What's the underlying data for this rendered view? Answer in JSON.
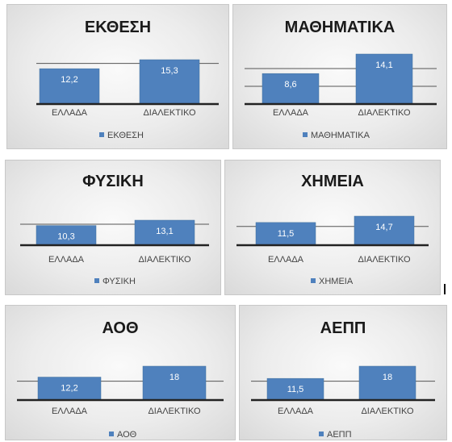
{
  "colors": {
    "bar": "#4f81bd",
    "bar_edge": "#41719c",
    "axis": "#222222",
    "grid": "#555555"
  },
  "chart_data": [
    {
      "type": "bar",
      "title": "ΕΚΘΕΣΗ",
      "categories": [
        "ΕΛΛΑΔΑ",
        "ΔΙΑΛΕΚΤΙΚΟ"
      ],
      "values": [
        12.2,
        15.3
      ],
      "value_labels": [
        "12,2",
        "15,3"
      ],
      "legend": "ΕΚΘΕΣΗ",
      "ylim": [
        0,
        17.5
      ],
      "gridlines": [
        14
      ],
      "legend_position": "bottom"
    },
    {
      "type": "bar",
      "title": "ΜΑΘΗΜΑΤΙΚΑ",
      "categories": [
        "ΕΛΛΑΔΑ",
        "ΔΙΑΛΕΚΤΙΚΟ"
      ],
      "values": [
        8.6,
        14.1
      ],
      "value_labels": [
        "8,6",
        "14,1"
      ],
      "legend": "ΜΑΘΗΜΑΤΙΚΑ",
      "ylim": [
        0,
        15
      ],
      "gridlines": [
        5,
        10
      ],
      "legend_position": "bottom"
    },
    {
      "type": "bar",
      "title": "ΦΥΣΙΚΗ",
      "categories": [
        "ΕΛΛΑΔΑ",
        "ΔΙΑΛΕΚΤΙΚΟ"
      ],
      "values": [
        10.3,
        13.1
      ],
      "value_labels": [
        "10,3",
        "13,1"
      ],
      "legend": "ΦΥΣΙΚΗ",
      "ylim": [
        0,
        14
      ],
      "gridlines": [
        11
      ],
      "legend_position": "bottom"
    },
    {
      "type": "bar",
      "title": "ΧΗΜΕΙΑ",
      "categories": [
        "ΕΛΛΑΔΑ",
        "ΔΙΑΛΕΚΤΙΚΟ"
      ],
      "values": [
        11.5,
        14.7
      ],
      "value_labels": [
        "11,5",
        "14,7"
      ],
      "legend": "ΧΗΜΕΙΑ",
      "ylim": [
        0,
        15.5
      ],
      "gridlines": [
        9.5
      ],
      "legend_position": "bottom"
    },
    {
      "type": "bar",
      "title": "ΑΟΘ",
      "categories": [
        "ΕΛΛΑΔΑ",
        "ΔΙΑΛΕΚΤΙΚΟ"
      ],
      "values": [
        12.2,
        18
      ],
      "value_labels": [
        "12,2",
        "18"
      ],
      "legend": "ΑΟΘ",
      "ylim": [
        0,
        21
      ],
      "gridlines": [
        10
      ],
      "legend_position": "bottom"
    },
    {
      "type": "bar",
      "title": "ΑΕΠΠ",
      "categories": [
        "ΕΛΛΑΔΑ",
        "ΔΙΑΛΕΚΤΙΚΟ"
      ],
      "values": [
        11.5,
        18
      ],
      "value_labels": [
        "11,5",
        "18"
      ],
      "legend": "ΑΕΠΠ",
      "ylim": [
        0,
        21
      ],
      "gridlines": [
        10
      ],
      "legend_position": "bottom"
    }
  ]
}
